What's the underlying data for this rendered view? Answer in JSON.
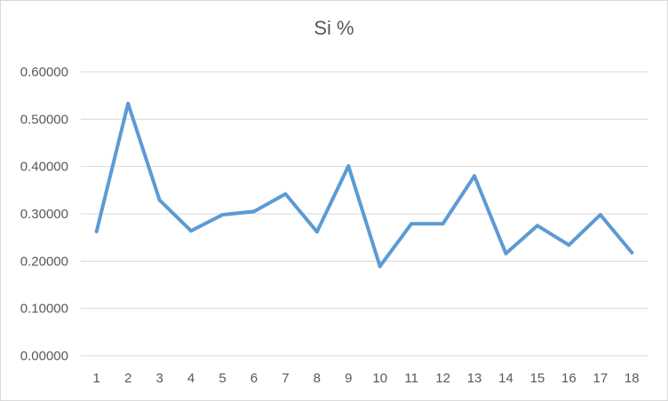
{
  "chart_data": {
    "type": "line",
    "title": "Si %",
    "xlabel": "",
    "ylabel": "",
    "categories": [
      "1",
      "2",
      "3",
      "4",
      "5",
      "6",
      "7",
      "8",
      "9",
      "10",
      "11",
      "12",
      "13",
      "14",
      "15",
      "16",
      "17",
      "18"
    ],
    "series": [
      {
        "values": [
          0.263,
          0.533,
          0.329,
          0.264,
          0.298,
          0.305,
          0.342,
          0.262,
          0.401,
          0.189,
          0.279,
          0.279,
          0.38,
          0.216,
          0.275,
          0.234,
          0.298,
          0.218
        ]
      }
    ],
    "ylim": [
      0,
      0.6
    ],
    "yticks": [
      "0.00000",
      "0.10000",
      "0.20000",
      "0.30000",
      "0.40000",
      "0.50000",
      "0.60000"
    ],
    "grid": true,
    "legend": "none",
    "colors": {
      "line": "#5b9bd5",
      "grid": "#d9d9d9",
      "text": "#595959"
    }
  }
}
